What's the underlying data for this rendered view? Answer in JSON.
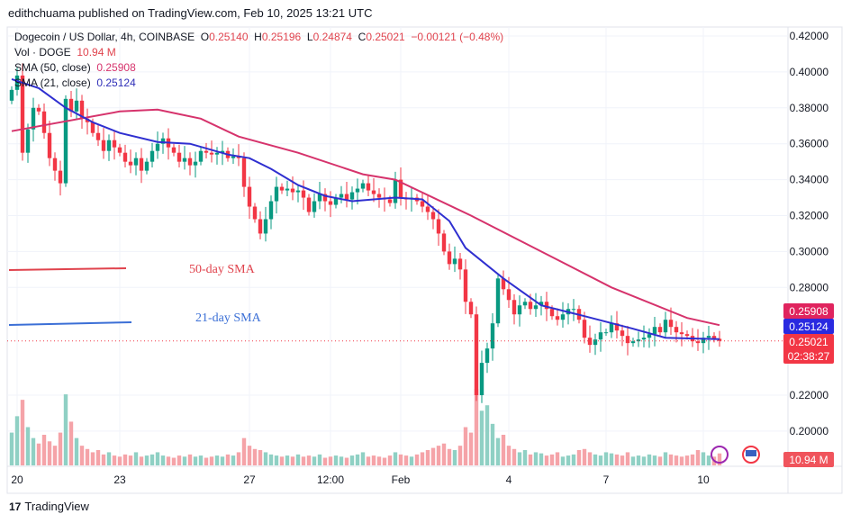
{
  "publisher_line": "edithchuama published on TradingView.com, Feb 10, 2025 13:21 UTC",
  "legend": {
    "symbol": "Dogecoin / US Dollar, 4h, COINBASE",
    "o_label": "O",
    "o": "0.25140",
    "h_label": "H",
    "h": "0.25196",
    "l_label": "L",
    "l": "0.24874",
    "c_label": "C",
    "c": "0.25021",
    "change": "−0.00121 (−0.48%)",
    "vol_label": "Vol · DOGE",
    "vol": "10.94 M",
    "sma50_label": "SMA (50, close)",
    "sma50": "0.25908",
    "sma21_label": "SMA (21, close)",
    "sma21": "0.25124"
  },
  "annotations": {
    "sma50_text": "50-day SMA",
    "sma21_text": "21-day SMA"
  },
  "price_labels": {
    "sma50": "0.25908",
    "sma21": "0.25124",
    "last": "0.25021",
    "countdown": "02:38:27",
    "volume": "10.94 M"
  },
  "footer": {
    "brand": "TradingView"
  },
  "colors": {
    "up": "#089981",
    "down": "#f23645",
    "sma50": "#d6336c",
    "sma21": "#2f2fd0",
    "up_vol": "#8fd0c4",
    "down_vol": "#f5a3a8"
  },
  "chart_data": {
    "type": "candlestick",
    "interval": "4h",
    "ylim": [
      0.19,
      0.425
    ],
    "y_ticks": [
      "0.42000",
      "0.40000",
      "0.38000",
      "0.36000",
      "0.34000",
      "0.32000",
      "0.30000",
      "0.28000",
      "0.22000",
      "0.20000"
    ],
    "x_ticks": [
      {
        "label": "20",
        "index": 1
      },
      {
        "label": "23",
        "index": 20
      },
      {
        "label": "27",
        "index": 44
      },
      {
        "label": "12:00",
        "index": 59
      },
      {
        "label": "Feb",
        "index": 72
      },
      {
        "label": "4",
        "index": 92
      },
      {
        "label": "7",
        "index": 110
      },
      {
        "label": "10",
        "index": 128
      }
    ],
    "close": [
      0.39,
      0.398,
      0.355,
      0.368,
      0.38,
      0.378,
      0.366,
      0.352,
      0.345,
      0.338,
      0.385,
      0.378,
      0.384,
      0.374,
      0.372,
      0.366,
      0.362,
      0.356,
      0.362,
      0.358,
      0.355,
      0.35,
      0.348,
      0.352,
      0.345,
      0.35,
      0.356,
      0.36,
      0.363,
      0.358,
      0.355,
      0.35,
      0.352,
      0.348,
      0.35,
      0.356,
      0.355,
      0.354,
      0.355,
      0.356,
      0.352,
      0.353,
      0.352,
      0.336,
      0.325,
      0.318,
      0.31,
      0.318,
      0.328,
      0.336,
      0.334,
      0.335,
      0.333,
      0.334,
      0.33,
      0.322,
      0.328,
      0.332,
      0.328,
      0.326,
      0.33,
      0.332,
      0.329,
      0.333,
      0.335,
      0.338,
      0.334,
      0.332,
      0.33,
      0.329,
      0.327,
      0.34,
      0.33,
      0.329,
      0.33,
      0.328,
      0.325,
      0.322,
      0.318,
      0.31,
      0.3,
      0.293,
      0.296,
      0.29,
      0.272,
      0.265,
      0.22,
      0.238,
      0.246,
      0.26,
      0.285,
      0.279,
      0.273,
      0.265,
      0.27,
      0.272,
      0.268,
      0.27,
      0.272,
      0.268,
      0.264,
      0.262,
      0.265,
      0.268,
      0.268,
      0.262,
      0.252,
      0.248,
      0.251,
      0.255,
      0.255,
      0.26,
      0.256,
      0.253,
      0.249,
      0.25,
      0.251,
      0.252,
      0.254,
      0.258,
      0.255,
      0.262,
      0.258,
      0.255,
      0.254,
      0.253,
      0.25,
      0.249,
      0.252,
      0.253,
      0.2514,
      0.25021
    ],
    "volume_m": [
      30,
      45,
      60,
      35,
      25,
      20,
      28,
      22,
      18,
      30,
      65,
      40,
      25,
      18,
      15,
      12,
      14,
      10,
      12,
      9,
      8,
      10,
      9,
      12,
      8,
      9,
      10,
      12,
      9,
      8,
      7,
      9,
      8,
      10,
      8,
      9,
      7,
      8,
      9,
      8,
      10,
      9,
      12,
      25,
      18,
      15,
      14,
      12,
      10,
      9,
      8,
      9,
      8,
      10,
      8,
      9,
      8,
      10,
      7,
      8,
      9,
      8,
      7,
      9,
      10,
      12,
      8,
      9,
      8,
      7,
      9,
      12,
      10,
      9,
      8,
      10,
      12,
      14,
      16,
      18,
      20,
      15,
      14,
      18,
      35,
      30,
      70,
      50,
      55,
      38,
      25,
      28,
      18,
      15,
      12,
      14,
      10,
      12,
      11,
      9,
      10,
      12,
      8,
      9,
      10,
      14,
      15,
      12,
      10,
      9,
      12,
      11,
      10,
      9,
      12,
      8,
      9,
      8,
      10,
      9,
      8,
      12,
      10,
      9,
      8,
      9,
      10,
      14,
      12,
      9,
      8,
      10.94
    ],
    "sma50": [
      [
        0,
        0.367
      ],
      [
        20,
        0.378
      ],
      [
        27,
        0.379
      ],
      [
        35,
        0.374
      ],
      [
        42,
        0.364
      ],
      [
        53,
        0.355
      ],
      [
        65,
        0.343
      ],
      [
        71,
        0.34
      ],
      [
        85,
        0.32
      ],
      [
        98,
        0.3
      ],
      [
        111,
        0.28
      ],
      [
        125,
        0.263
      ],
      [
        131,
        0.259
      ]
    ],
    "sma21": [
      [
        0,
        0.396
      ],
      [
        5,
        0.391
      ],
      [
        10,
        0.38
      ],
      [
        15,
        0.372
      ],
      [
        20,
        0.366
      ],
      [
        27,
        0.361
      ],
      [
        33,
        0.36
      ],
      [
        40,
        0.354
      ],
      [
        44,
        0.352
      ],
      [
        48,
        0.346
      ],
      [
        53,
        0.337
      ],
      [
        58,
        0.331
      ],
      [
        63,
        0.328
      ],
      [
        71,
        0.33
      ],
      [
        76,
        0.329
      ],
      [
        81,
        0.317
      ],
      [
        84,
        0.302
      ],
      [
        91,
        0.285
      ],
      [
        98,
        0.27
      ],
      [
        106,
        0.264
      ],
      [
        115,
        0.257
      ],
      [
        121,
        0.252
      ],
      [
        131,
        0.2512
      ]
    ]
  }
}
